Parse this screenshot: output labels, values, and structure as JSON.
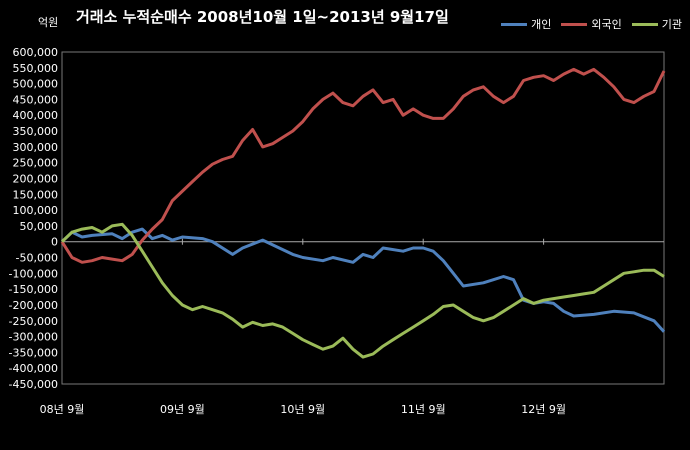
{
  "chart_data": {
    "type": "line",
    "title": "거래소 누적순매수 2008년10월 1일~2013년 9월17일",
    "unit_label": "억원",
    "ylim": [
      -450000,
      600000
    ],
    "ytick_step": 50000,
    "yticks": [
      "600,000",
      "550,000",
      "500,000",
      "450,000",
      "400,000",
      "350,000",
      "300,000",
      "250,000",
      "200,000",
      "150,000",
      "100,000",
      "50,000",
      "0",
      "-50,000",
      "-100,000",
      "-150,000",
      "-200,000",
      "-250,000",
      "-300,000",
      "-350,000",
      "-400,000",
      "-450,000"
    ],
    "xlim": [
      0,
      60
    ],
    "x_ticks": [
      {
        "label": "08년 9월",
        "pos": 0
      },
      {
        "label": "09년 9월",
        "pos": 12
      },
      {
        "label": "10년 9월",
        "pos": 24
      },
      {
        "label": "11년 9월",
        "pos": 36
      },
      {
        "label": "12년 9월",
        "pos": 48
      }
    ],
    "series": [
      {
        "name": "개인",
        "color": "#4f81bd",
        "points": [
          [
            0,
            0
          ],
          [
            1,
            30000
          ],
          [
            2,
            15000
          ],
          [
            3,
            20000
          ],
          [
            5,
            25000
          ],
          [
            6,
            10000
          ],
          [
            7,
            30000
          ],
          [
            8,
            40000
          ],
          [
            9,
            10000
          ],
          [
            10,
            20000
          ],
          [
            11,
            5000
          ],
          [
            12,
            15000
          ],
          [
            14,
            10000
          ],
          [
            15,
            0
          ],
          [
            17,
            -40000
          ],
          [
            18,
            -20000
          ],
          [
            20,
            5000
          ],
          [
            21,
            -10000
          ],
          [
            23,
            -40000
          ],
          [
            24,
            -50000
          ],
          [
            26,
            -60000
          ],
          [
            27,
            -50000
          ],
          [
            29,
            -65000
          ],
          [
            30,
            -40000
          ],
          [
            31,
            -50000
          ],
          [
            32,
            -20000
          ],
          [
            34,
            -30000
          ],
          [
            35,
            -20000
          ],
          [
            36,
            -20000
          ],
          [
            37,
            -30000
          ],
          [
            38,
            -60000
          ],
          [
            39,
            -100000
          ],
          [
            40,
            -140000
          ],
          [
            42,
            -130000
          ],
          [
            43,
            -120000
          ],
          [
            44,
            -110000
          ],
          [
            45,
            -120000
          ],
          [
            46,
            -185000
          ],
          [
            47,
            -195000
          ],
          [
            48,
            -190000
          ],
          [
            49,
            -195000
          ],
          [
            50,
            -220000
          ],
          [
            51,
            -235000
          ],
          [
            53,
            -230000
          ],
          [
            55,
            -220000
          ],
          [
            57,
            -225000
          ],
          [
            59,
            -250000
          ],
          [
            60,
            -285000
          ]
        ]
      },
      {
        "name": "외국인",
        "color": "#c0504d",
        "points": [
          [
            0,
            0
          ],
          [
            1,
            -50000
          ],
          [
            2,
            -65000
          ],
          [
            3,
            -60000
          ],
          [
            4,
            -50000
          ],
          [
            5,
            -55000
          ],
          [
            6,
            -60000
          ],
          [
            7,
            -40000
          ],
          [
            8,
            5000
          ],
          [
            9,
            40000
          ],
          [
            10,
            70000
          ],
          [
            11,
            130000
          ],
          [
            12,
            160000
          ],
          [
            13,
            190000
          ],
          [
            14,
            220000
          ],
          [
            15,
            245000
          ],
          [
            16,
            260000
          ],
          [
            17,
            270000
          ],
          [
            18,
            320000
          ],
          [
            19,
            355000
          ],
          [
            20,
            300000
          ],
          [
            21,
            310000
          ],
          [
            22,
            330000
          ],
          [
            23,
            350000
          ],
          [
            24,
            380000
          ],
          [
            25,
            420000
          ],
          [
            26,
            450000
          ],
          [
            27,
            470000
          ],
          [
            28,
            440000
          ],
          [
            29,
            430000
          ],
          [
            30,
            460000
          ],
          [
            31,
            480000
          ],
          [
            32,
            440000
          ],
          [
            33,
            450000
          ],
          [
            34,
            400000
          ],
          [
            35,
            420000
          ],
          [
            36,
            400000
          ],
          [
            37,
            390000
          ],
          [
            38,
            390000
          ],
          [
            39,
            420000
          ],
          [
            40,
            460000
          ],
          [
            41,
            480000
          ],
          [
            42,
            490000
          ],
          [
            43,
            460000
          ],
          [
            44,
            440000
          ],
          [
            45,
            460000
          ],
          [
            46,
            510000
          ],
          [
            47,
            520000
          ],
          [
            48,
            525000
          ],
          [
            49,
            510000
          ],
          [
            50,
            530000
          ],
          [
            51,
            545000
          ],
          [
            52,
            530000
          ],
          [
            53,
            545000
          ],
          [
            54,
            520000
          ],
          [
            55,
            490000
          ],
          [
            56,
            450000
          ],
          [
            57,
            440000
          ],
          [
            58,
            460000
          ],
          [
            59,
            475000
          ],
          [
            60,
            540000
          ]
        ]
      },
      {
        "name": "기관",
        "color": "#9bbb59",
        "points": [
          [
            0,
            0
          ],
          [
            1,
            30000
          ],
          [
            2,
            40000
          ],
          [
            3,
            45000
          ],
          [
            4,
            30000
          ],
          [
            5,
            50000
          ],
          [
            6,
            55000
          ],
          [
            7,
            20000
          ],
          [
            8,
            -30000
          ],
          [
            9,
            -80000
          ],
          [
            10,
            -130000
          ],
          [
            11,
            -170000
          ],
          [
            12,
            -200000
          ],
          [
            13,
            -215000
          ],
          [
            14,
            -205000
          ],
          [
            15,
            -215000
          ],
          [
            16,
            -225000
          ],
          [
            17,
            -245000
          ],
          [
            18,
            -270000
          ],
          [
            19,
            -255000
          ],
          [
            20,
            -265000
          ],
          [
            21,
            -260000
          ],
          [
            22,
            -270000
          ],
          [
            23,
            -290000
          ],
          [
            24,
            -310000
          ],
          [
            25,
            -325000
          ],
          [
            26,
            -340000
          ],
          [
            27,
            -330000
          ],
          [
            28,
            -305000
          ],
          [
            29,
            -340000
          ],
          [
            30,
            -365000
          ],
          [
            31,
            -355000
          ],
          [
            32,
            -330000
          ],
          [
            33,
            -310000
          ],
          [
            34,
            -290000
          ],
          [
            35,
            -270000
          ],
          [
            36,
            -250000
          ],
          [
            37,
            -230000
          ],
          [
            38,
            -205000
          ],
          [
            39,
            -200000
          ],
          [
            40,
            -220000
          ],
          [
            41,
            -240000
          ],
          [
            42,
            -250000
          ],
          [
            43,
            -240000
          ],
          [
            44,
            -220000
          ],
          [
            45,
            -200000
          ],
          [
            46,
            -180000
          ],
          [
            47,
            -195000
          ],
          [
            48,
            -185000
          ],
          [
            49,
            -180000
          ],
          [
            50,
            -175000
          ],
          [
            51,
            -170000
          ],
          [
            52,
            -165000
          ],
          [
            53,
            -160000
          ],
          [
            54,
            -140000
          ],
          [
            55,
            -120000
          ],
          [
            56,
            -100000
          ],
          [
            57,
            -95000
          ],
          [
            58,
            -90000
          ],
          [
            59,
            -90000
          ],
          [
            60,
            -110000
          ]
        ]
      }
    ],
    "grid": false,
    "legend_position": "top-right"
  }
}
